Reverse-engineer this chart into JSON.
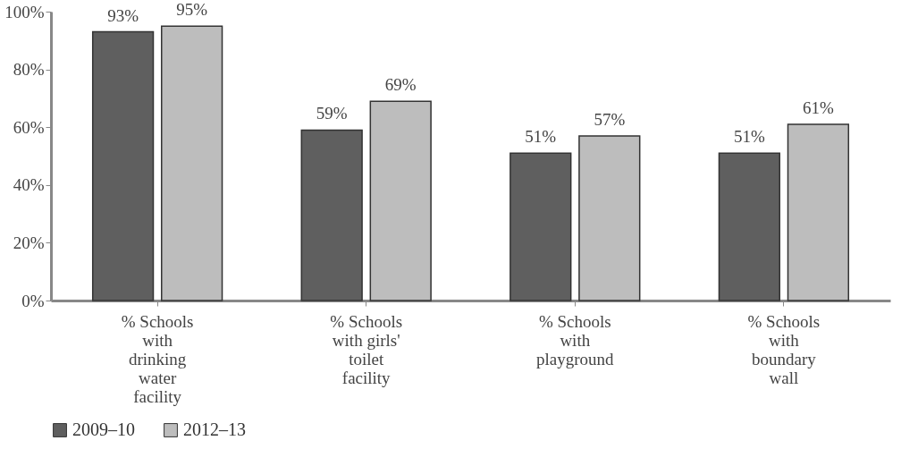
{
  "chart_data": {
    "type": "bar",
    "categories": [
      "% Schools with drinking water facility",
      "% Schools with girls' toilet facility",
      "% Schools with playground",
      "% Schools with boundary wall"
    ],
    "series": [
      {
        "name": "2009–10",
        "color": "#5f5f5f",
        "values": [
          93,
          59,
          51,
          51
        ],
        "value_labels": [
          "93%",
          "59%",
          "51%",
          "51%"
        ]
      },
      {
        "name": "2012–13",
        "color": "#bdbdbd",
        "values": [
          95,
          69,
          57,
          61
        ],
        "value_labels": [
          "95%",
          "69%",
          "57%",
          "61%"
        ]
      }
    ],
    "ylim": [
      0,
      100
    ],
    "yticks": [
      {
        "value": 0,
        "label": "0%"
      },
      {
        "value": 20,
        "label": "20%"
      },
      {
        "value": 40,
        "label": "40%"
      },
      {
        "value": 60,
        "label": "60%"
      },
      {
        "value": 80,
        "label": "80%"
      },
      {
        "value": 100,
        "label": "100%"
      }
    ],
    "grid": false,
    "legend": "bottom"
  }
}
